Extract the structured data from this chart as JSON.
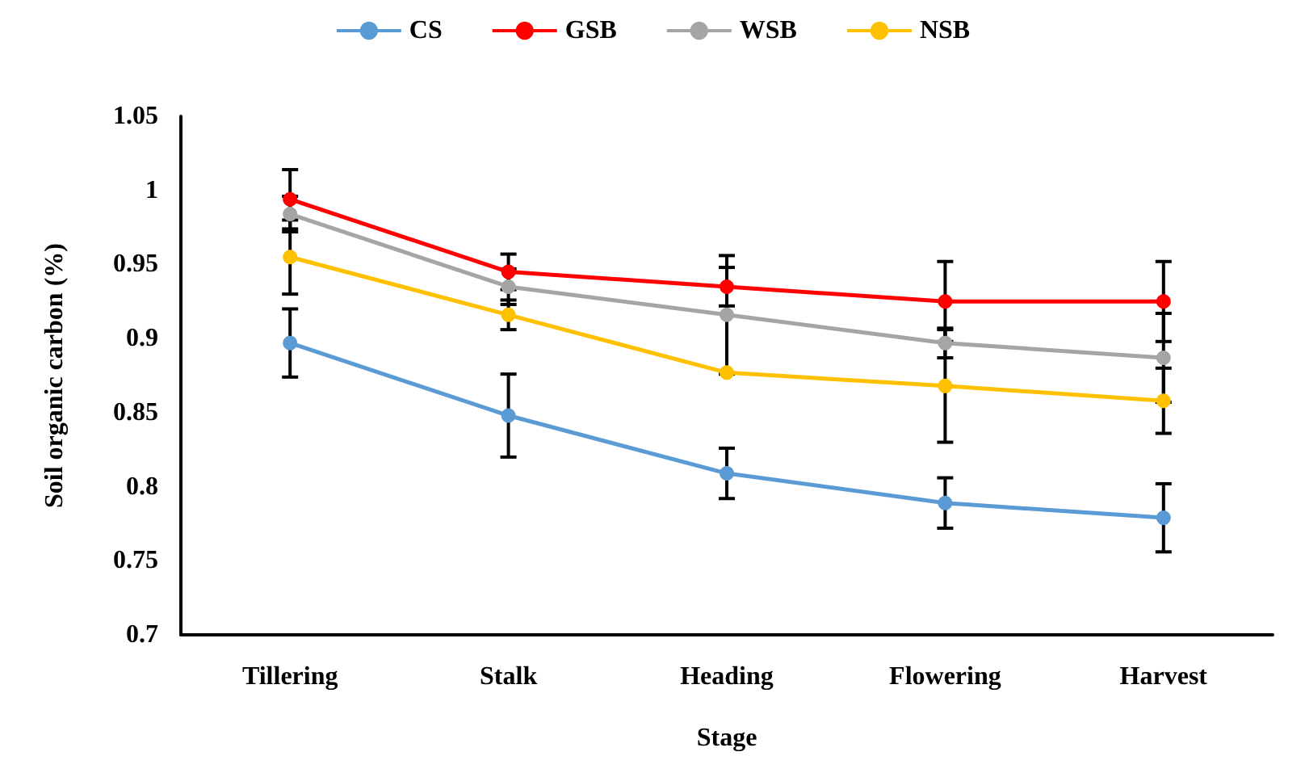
{
  "chart_data": {
    "type": "line",
    "xlabel": "Stage",
    "ylabel": "Soil organic carbon (%)",
    "categories": [
      "Tillering",
      "Stalk",
      "Heading",
      "Flowering",
      "Harvest"
    ],
    "ylim": [
      0.7,
      1.05
    ],
    "yticks": [
      0.7,
      0.75,
      0.8,
      0.85,
      0.9,
      0.95,
      1,
      1.05
    ],
    "grid": false,
    "legend": "top",
    "marker": "circle",
    "series": [
      {
        "name": "CS",
        "color": "#5b9bd5",
        "values": [
          0.897,
          0.848,
          0.809,
          0.789,
          0.779
        ],
        "errors": [
          0.023,
          0.028,
          0.017,
          0.017,
          0.023
        ]
      },
      {
        "name": "GSB",
        "color": "#ff0000",
        "values": [
          0.994,
          0.945,
          0.935,
          0.925,
          0.925
        ],
        "errors": [
          0.02,
          0.012,
          0.013,
          0.027,
          0.027
        ]
      },
      {
        "name": "WSB",
        "color": "#a5a5a5",
        "values": [
          0.984,
          0.935,
          0.916,
          0.897,
          0.887
        ],
        "errors": [
          0.012,
          0.012,
          0.04,
          0.01,
          0.03
        ]
      },
      {
        "name": "NSB",
        "color": "#ffc000",
        "values": [
          0.955,
          0.916,
          0.877,
          0.868,
          0.858
        ],
        "errors": [
          0.025,
          0.01,
          null,
          0.038,
          0.022
        ]
      }
    ]
  }
}
